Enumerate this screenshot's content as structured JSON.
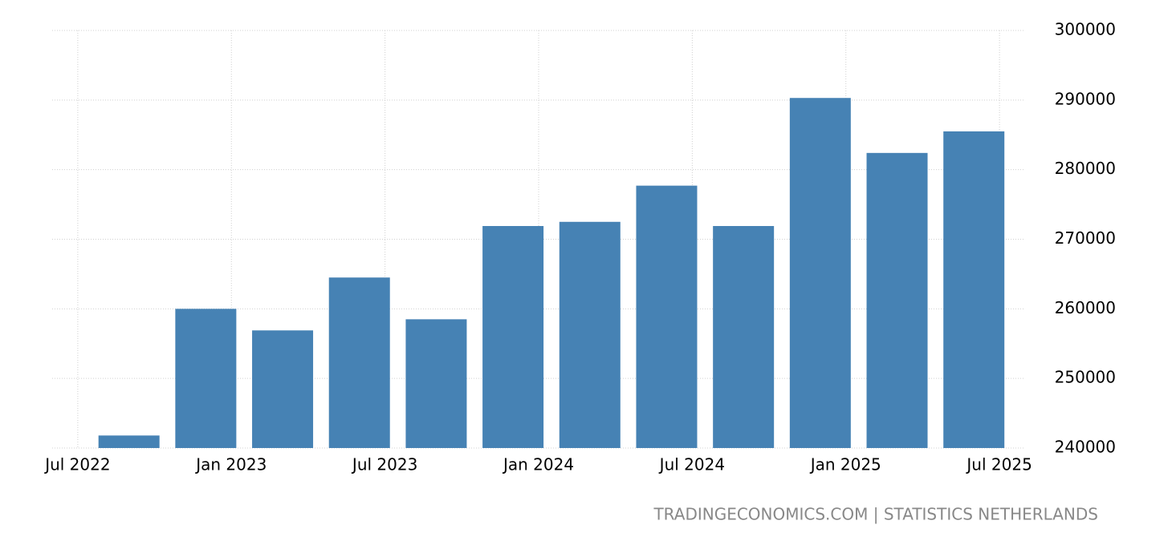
{
  "chart_data": {
    "type": "bar",
    "x": [
      "2022-09",
      "2022-12",
      "2023-03",
      "2023-06",
      "2023-09",
      "2023-12",
      "2024-03",
      "2024-06",
      "2024-09",
      "2024-12",
      "2025-03",
      "2025-06"
    ],
    "values": [
      241800,
      260000,
      256900,
      264500,
      258500,
      271900,
      272500,
      277700,
      271900,
      290300,
      282400,
      285500
    ],
    "color": "#4682b4",
    "xlim": [
      "2022-06",
      "2025-08"
    ],
    "xticks": [
      {
        "value": "2022-07",
        "label": "Jul 2022"
      },
      {
        "value": "2023-01",
        "label": "Jan 2023"
      },
      {
        "value": "2023-07",
        "label": "Jul 2023"
      },
      {
        "value": "2024-01",
        "label": "Jan 2024"
      },
      {
        "value": "2024-07",
        "label": "Jul 2024"
      },
      {
        "value": "2025-01",
        "label": "Jan 2025"
      },
      {
        "value": "2025-07",
        "label": "Jul 2025"
      }
    ],
    "ylim": [
      240000,
      300000
    ],
    "yticks": [
      240000,
      250000,
      260000,
      270000,
      280000,
      290000,
      300000
    ],
    "grid": true,
    "source": "TRADINGECONOMICS.COM | STATISTICS NETHERLANDS"
  }
}
